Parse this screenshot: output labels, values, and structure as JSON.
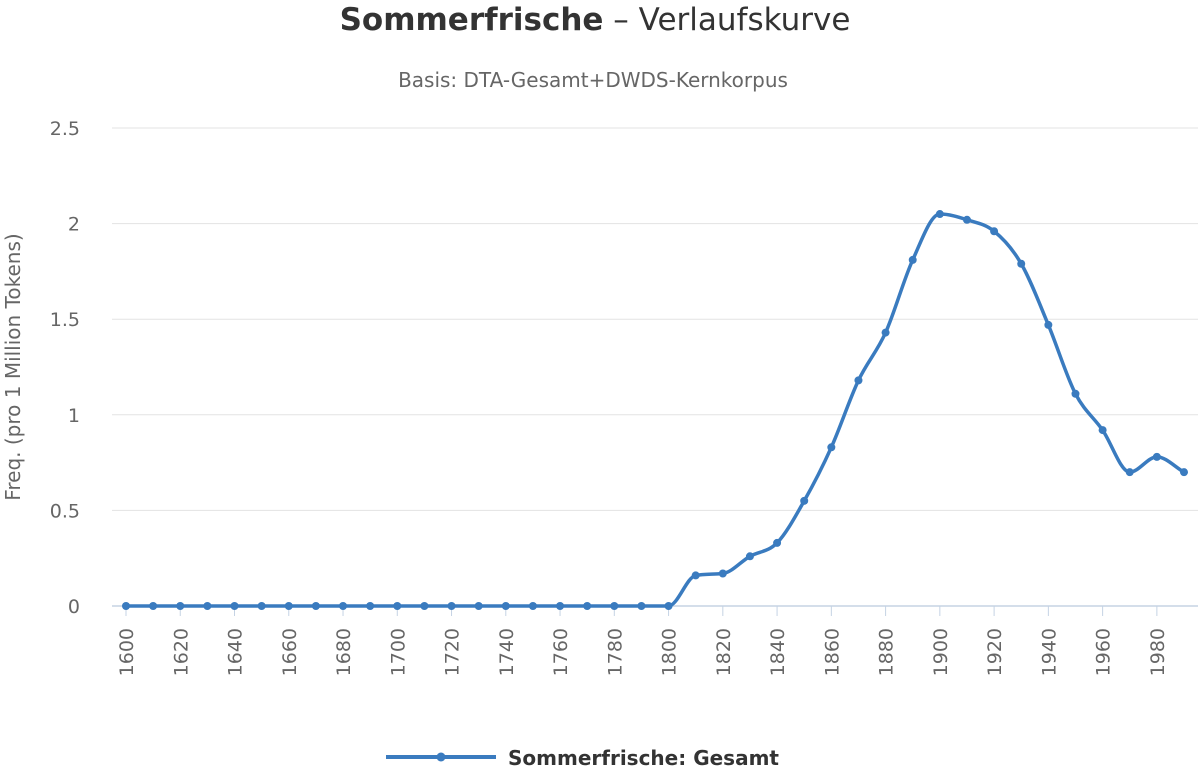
{
  "chart_data": {
    "type": "line",
    "title": "Sommerfrische",
    "title_suffix": " – Verlaufskurve",
    "subtitle": "Basis: DTA-Gesamt+DWDS-Kernkorpus",
    "xlabel": "",
    "ylabel": "Freq. (pro 1 Million Tokens)",
    "ylim": [
      0,
      2.5
    ],
    "yticks": [
      "0",
      "0.5",
      "1",
      "1.5",
      "2",
      "2.5"
    ],
    "xticks": [
      "1600",
      "1620",
      "1640",
      "1660",
      "1680",
      "1700",
      "1720",
      "1740",
      "1760",
      "1780",
      "1800",
      "1820",
      "1840",
      "1860",
      "1880",
      "1900",
      "1920",
      "1940",
      "1960",
      "1980"
    ],
    "x": [
      1600,
      1610,
      1620,
      1630,
      1640,
      1650,
      1660,
      1670,
      1680,
      1690,
      1700,
      1710,
      1720,
      1730,
      1740,
      1750,
      1760,
      1770,
      1780,
      1790,
      1800,
      1810,
      1820,
      1830,
      1840,
      1850,
      1860,
      1870,
      1880,
      1890,
      1900,
      1910,
      1920,
      1930,
      1940,
      1950,
      1960,
      1970,
      1980,
      1990
    ],
    "series": [
      {
        "name": "Sommerfrische: Gesamt",
        "color": "#3a7bbf",
        "values": [
          0,
          0,
          0,
          0,
          0,
          0,
          0,
          0,
          0,
          0,
          0,
          0,
          0,
          0,
          0,
          0,
          0,
          0,
          0,
          0,
          0,
          0.16,
          0.17,
          0.26,
          0.33,
          0.55,
          0.83,
          1.18,
          1.43,
          1.81,
          2.05,
          2.02,
          1.96,
          1.79,
          1.47,
          1.11,
          0.92,
          0.7,
          0.78,
          0.7
        ]
      }
    ],
    "grid": true,
    "legend_position": "bottom"
  }
}
